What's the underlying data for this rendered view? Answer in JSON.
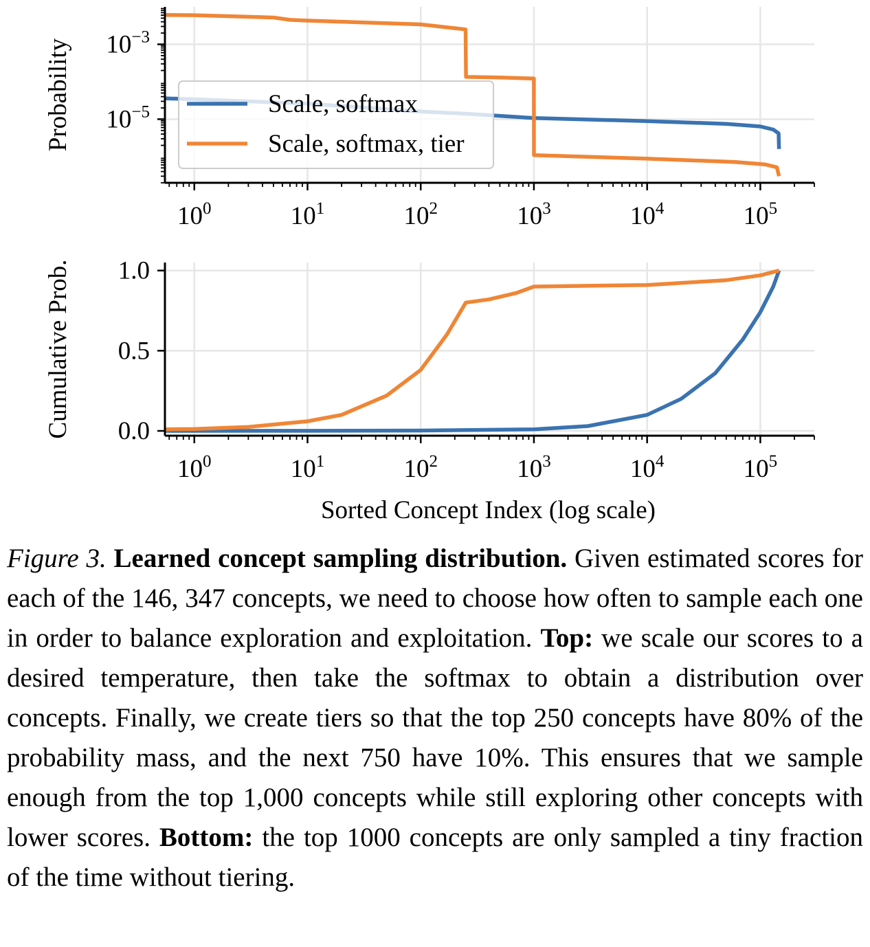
{
  "chart_data": [
    {
      "type": "line",
      "ylabel": "Probability",
      "xlabel": "",
      "xscale": "log",
      "yscale": "log",
      "xlim": [
        0.55,
        300000
      ],
      "ylim": [
        2e-07,
        0.01
      ],
      "x_ticks": [
        {
          "value": 1,
          "mantissa": "10",
          "exp": "0"
        },
        {
          "value": 10,
          "mantissa": "10",
          "exp": "1"
        },
        {
          "value": 100,
          "mantissa": "10",
          "exp": "2"
        },
        {
          "value": 1000,
          "mantissa": "10",
          "exp": "3"
        },
        {
          "value": 10000,
          "mantissa": "10",
          "exp": "4"
        },
        {
          "value": 100000,
          "mantissa": "10",
          "exp": "5"
        }
      ],
      "y_ticks": [
        {
          "value": 0.001,
          "mantissa": "10",
          "exp": "−3"
        },
        {
          "value": 1e-05,
          "mantissa": "10",
          "exp": "−5"
        }
      ],
      "grid": true,
      "legend_position": "lower-left",
      "series": [
        {
          "name": "Scale, softmax",
          "color": "#3a73b0",
          "points": [
            [
              0.55,
              3.6e-05
            ],
            [
              1,
              3.4e-05
            ],
            [
              10,
              2.6e-05
            ],
            [
              100,
              1.6e-05
            ],
            [
              250,
              1.4e-05
            ],
            [
              1000,
              1.07e-05
            ],
            [
              10000,
              8.9e-06
            ],
            [
              50000,
              7.5e-06
            ],
            [
              100000,
              6.4e-06
            ],
            [
              130000,
              5.3e-06
            ],
            [
              145000,
              4.2e-06
            ],
            [
              146347,
              1.6e-06
            ]
          ]
        },
        {
          "name": "Scale, softmax, tier",
          "color": "#ef8636",
          "points": [
            [
              0.55,
              0.0061
            ],
            [
              1,
              0.006
            ],
            [
              5,
              0.0052
            ],
            [
              7,
              0.0045
            ],
            [
              10,
              0.0043
            ],
            [
              100,
              0.0034
            ],
            [
              249,
              0.0025
            ],
            [
              251,
              0.000135
            ],
            [
              500,
              0.00013
            ],
            [
              999,
              0.000122
            ],
            [
              1001,
              1.1e-06
            ],
            [
              10000,
              8.8e-07
            ],
            [
              60000,
              7.2e-07
            ],
            [
              110000,
              6.2e-07
            ],
            [
              140000,
              5.2e-07
            ],
            [
              146347,
              3e-07
            ]
          ]
        }
      ]
    },
    {
      "type": "line",
      "ylabel": "Cumulative Prob.",
      "xlabel": "Sorted Concept Index (log scale)",
      "xscale": "log",
      "yscale": "linear",
      "xlim": [
        0.55,
        300000
      ],
      "ylim": [
        -0.03,
        1.05
      ],
      "x_ticks": [
        {
          "value": 1,
          "mantissa": "10",
          "exp": "0"
        },
        {
          "value": 10,
          "mantissa": "10",
          "exp": "1"
        },
        {
          "value": 100,
          "mantissa": "10",
          "exp": "2"
        },
        {
          "value": 1000,
          "mantissa": "10",
          "exp": "3"
        },
        {
          "value": 10000,
          "mantissa": "10",
          "exp": "4"
        },
        {
          "value": 100000,
          "mantissa": "10",
          "exp": "5"
        }
      ],
      "y_ticks": [
        {
          "value": 0,
          "label": "0.0"
        },
        {
          "value": 0.5,
          "label": "0.5"
        },
        {
          "value": 1,
          "label": "1.0"
        }
      ],
      "grid": true,
      "series": [
        {
          "name": "Scale, softmax",
          "color": "#3a73b0",
          "points": [
            [
              0.55,
              0.0
            ],
            [
              10,
              0.0003
            ],
            [
              100,
              0.002
            ],
            [
              1000,
              0.01
            ],
            [
              3000,
              0.03
            ],
            [
              10000,
              0.1
            ],
            [
              20000,
              0.2
            ],
            [
              40000,
              0.36
            ],
            [
              70000,
              0.57
            ],
            [
              100000,
              0.74
            ],
            [
              130000,
              0.9
            ],
            [
              146347,
              1.0
            ]
          ]
        },
        {
          "name": "Scale, softmax, tier",
          "color": "#ef8636",
          "points": [
            [
              0.55,
              0.01
            ],
            [
              1,
              0.012
            ],
            [
              3,
              0.025
            ],
            [
              10,
              0.06
            ],
            [
              20,
              0.1
            ],
            [
              50,
              0.22
            ],
            [
              100,
              0.38
            ],
            [
              170,
              0.6
            ],
            [
              250,
              0.8
            ],
            [
              400,
              0.82
            ],
            [
              700,
              0.86
            ],
            [
              1000,
              0.9
            ],
            [
              10000,
              0.91
            ],
            [
              50000,
              0.94
            ],
            [
              100000,
              0.97
            ],
            [
              146347,
              1.0
            ]
          ]
        }
      ]
    }
  ],
  "caption": {
    "figure_label": "Figure 3.",
    "title": "Learned concept sampling distribution.",
    "sentence1": " Given estimated scores for each of the 146, 347 concepts, we need to choose how often to sample each one in order to balance exploration and exploitation. ",
    "top_label": "Top:",
    "top_text": " we scale our scores to a desired temperature, then take the softmax to obtain a distribution over concepts. Finally, we create tiers so that the top 250 concepts have 80% of the probability mass, and the next 750 have 10%. This ensures that we sample enough from the top 1,000 concepts while still exploring other concepts with lower scores. ",
    "bottom_label": "Bottom:",
    "bottom_text": " the top 1000 concepts are only sampled a tiny fraction of the time without tiering."
  }
}
